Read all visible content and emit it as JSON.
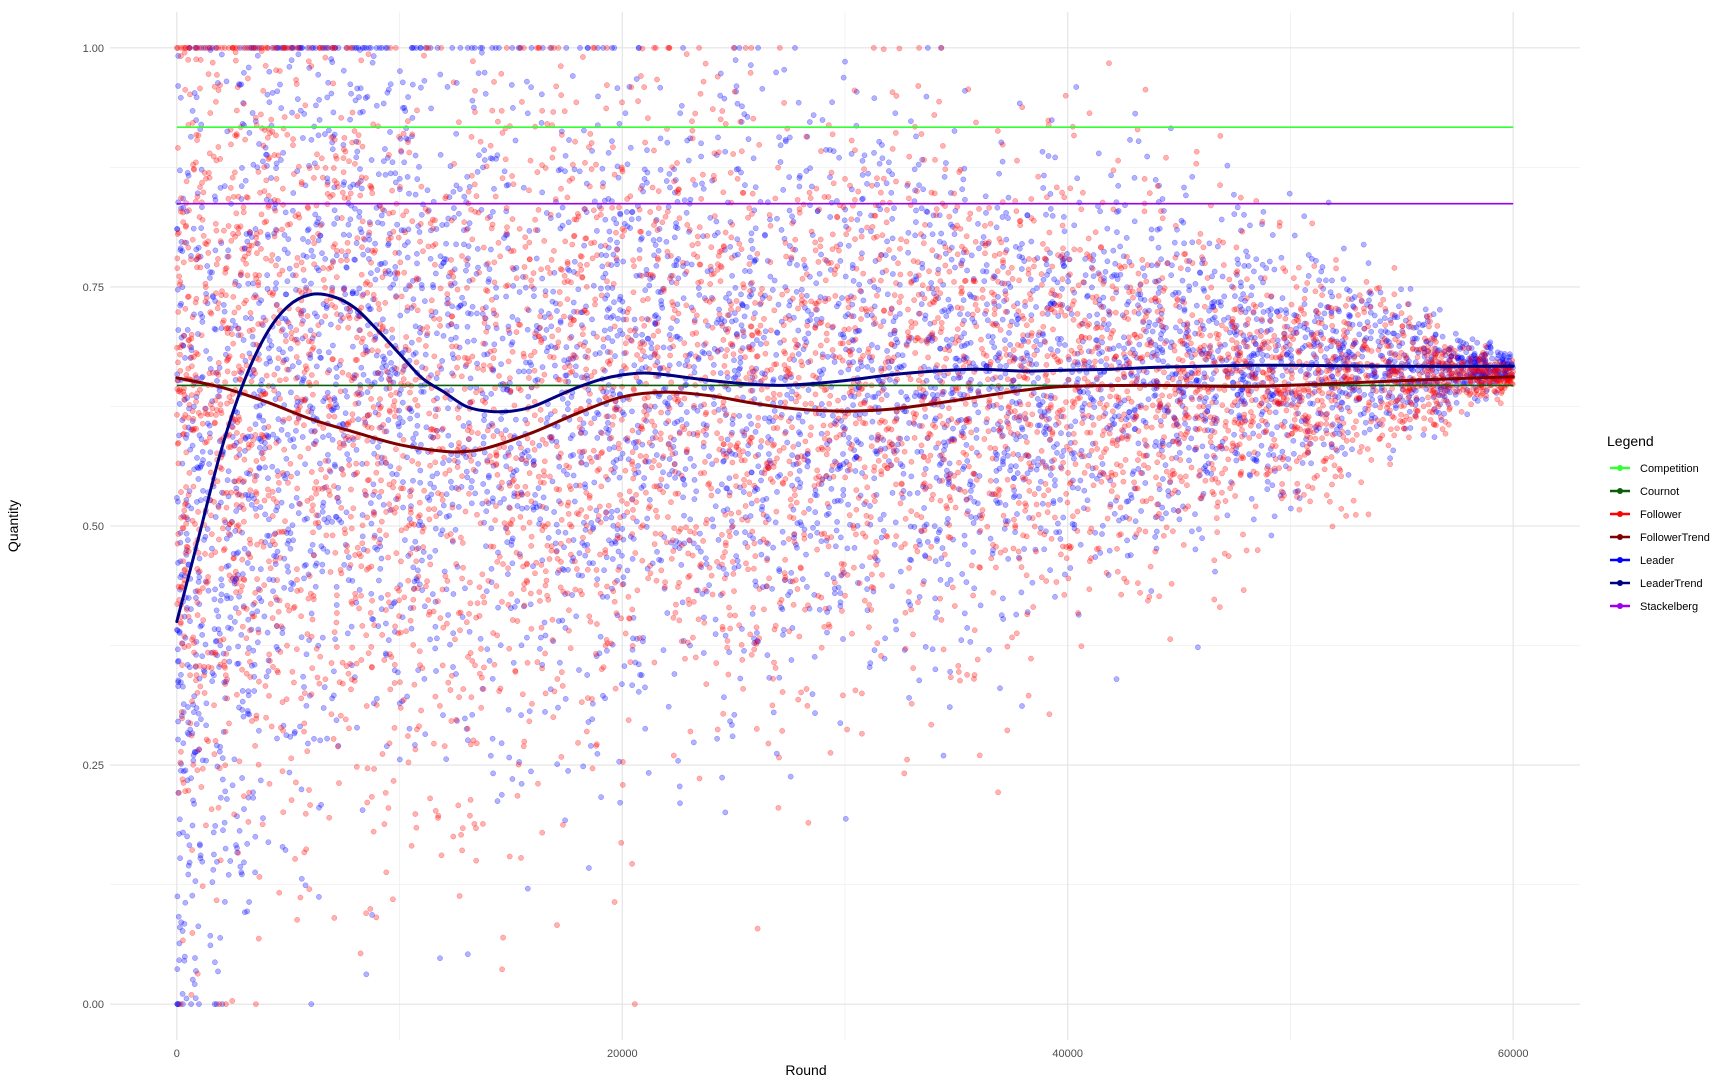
{
  "chart_data": {
    "type": "scatter",
    "title": "",
    "xlabel": "Round",
    "ylabel": "Quantity",
    "xlim": [
      -3000,
      63000
    ],
    "ylim": [
      -0.0375,
      1.0375
    ],
    "x_ticks": [
      0,
      20000,
      40000,
      60000
    ],
    "x_tick_labels": [
      "0",
      "20000",
      "40000",
      "60000"
    ],
    "y_ticks": [
      0,
      0.25,
      0.5,
      0.75,
      1
    ],
    "y_tick_labels": [
      "0.00",
      "0.25",
      "0.50",
      "0.75",
      "1.00"
    ],
    "grid": true,
    "legend": {
      "title": "Legend",
      "position": "right",
      "entries": [
        {
          "label": "Competition",
          "color": "#33ff33"
        },
        {
          "label": "Cournot",
          "color": "#0b5e0b"
        },
        {
          "label": "Follower",
          "color": "#ff0000"
        },
        {
          "label": "FollowerTrend",
          "color": "#7f0000"
        },
        {
          "label": "Leader",
          "color": "#0000ff"
        },
        {
          "label": "LeaderTrend",
          "color": "#000080"
        },
        {
          "label": "Stackelberg",
          "color": "#9900ee"
        }
      ]
    },
    "reference_lines": [
      {
        "name": "Competition",
        "y": 0.917,
        "x_range": [
          0,
          60000
        ],
        "color": "#33ff33"
      },
      {
        "name": "Stackelberg",
        "y": 0.837,
        "x_range": [
          0,
          60000
        ],
        "color": "#9900ee"
      },
      {
        "name": "Cournot",
        "y": 0.647,
        "x_range": [
          0,
          60000
        ],
        "color": "#0b5e0b"
      }
    ],
    "series": [
      {
        "name": "Leader",
        "kind": "points",
        "color": "#0000ff",
        "opacity": 0.3,
        "distribution": {
          "x_range": [
            0,
            60000
          ],
          "center": [
            [
              0,
              0.42
            ],
            [
              4000,
              0.63
            ],
            [
              8000,
              0.72
            ],
            [
              12000,
              0.64
            ],
            [
              16000,
              0.62
            ],
            [
              20000,
              0.65
            ],
            [
              30000,
              0.65
            ],
            [
              40000,
              0.655
            ],
            [
              50000,
              0.665
            ],
            [
              60000,
              0.667
            ]
          ],
          "spread": [
            [
              0,
              0.5
            ],
            [
              10000,
              0.4
            ],
            [
              20000,
              0.35
            ],
            [
              30000,
              0.29
            ],
            [
              40000,
              0.22
            ],
            [
              50000,
              0.13
            ],
            [
              60000,
              0.01
            ]
          ]
        }
      },
      {
        "name": "Follower",
        "kind": "points",
        "color": "#ff0000",
        "opacity": 0.3,
        "distribution": {
          "x_range": [
            0,
            60000
          ],
          "center": [
            [
              0,
              0.62
            ],
            [
              5000,
              0.64
            ],
            [
              10000,
              0.6
            ],
            [
              14000,
              0.58
            ],
            [
              20000,
              0.64
            ],
            [
              30000,
              0.62
            ],
            [
              40000,
              0.645
            ],
            [
              50000,
              0.65
            ],
            [
              60000,
              0.657
            ]
          ],
          "spread": [
            [
              0,
              0.5
            ],
            [
              10000,
              0.42
            ],
            [
              20000,
              0.36
            ],
            [
              30000,
              0.3
            ],
            [
              40000,
              0.23
            ],
            [
              50000,
              0.14
            ],
            [
              60000,
              0.01
            ]
          ]
        }
      },
      {
        "name": "LeaderTrend",
        "kind": "smooth",
        "color": "#000080",
        "points": [
          [
            0,
            0.4
          ],
          [
            1000,
            0.49
          ],
          [
            2000,
            0.58
          ],
          [
            3000,
            0.65
          ],
          [
            4000,
            0.7
          ],
          [
            5000,
            0.73
          ],
          [
            6000,
            0.742
          ],
          [
            7000,
            0.74
          ],
          [
            8000,
            0.728
          ],
          [
            9000,
            0.705
          ],
          [
            10000,
            0.68
          ],
          [
            11000,
            0.655
          ],
          [
            12000,
            0.64
          ],
          [
            13000,
            0.625
          ],
          [
            14000,
            0.62
          ],
          [
            15000,
            0.62
          ],
          [
            16000,
            0.625
          ],
          [
            17000,
            0.635
          ],
          [
            18000,
            0.645
          ],
          [
            19000,
            0.653
          ],
          [
            20000,
            0.658
          ],
          [
            21000,
            0.66
          ],
          [
            22000,
            0.658
          ],
          [
            24000,
            0.652
          ],
          [
            26000,
            0.648
          ],
          [
            27000,
            0.647
          ],
          [
            28000,
            0.648
          ],
          [
            30000,
            0.652
          ],
          [
            32000,
            0.658
          ],
          [
            34000,
            0.662
          ],
          [
            36000,
            0.664
          ],
          [
            38000,
            0.662
          ],
          [
            40000,
            0.663
          ],
          [
            42000,
            0.664
          ],
          [
            44000,
            0.666
          ],
          [
            46000,
            0.667
          ],
          [
            48000,
            0.668
          ],
          [
            50000,
            0.668
          ],
          [
            55000,
            0.667
          ],
          [
            60000,
            0.667
          ]
        ]
      },
      {
        "name": "FollowerTrend",
        "kind": "smooth",
        "color": "#7f0000",
        "points": [
          [
            0,
            0.655
          ],
          [
            2000,
            0.645
          ],
          [
            4000,
            0.63
          ],
          [
            6000,
            0.612
          ],
          [
            8000,
            0.598
          ],
          [
            10000,
            0.585
          ],
          [
            12000,
            0.578
          ],
          [
            13000,
            0.578
          ],
          [
            14000,
            0.582
          ],
          [
            16000,
            0.598
          ],
          [
            18000,
            0.618
          ],
          [
            20000,
            0.635
          ],
          [
            22000,
            0.64
          ],
          [
            24000,
            0.636
          ],
          [
            26000,
            0.628
          ],
          [
            28000,
            0.622
          ],
          [
            30000,
            0.62
          ],
          [
            32000,
            0.622
          ],
          [
            34000,
            0.628
          ],
          [
            36000,
            0.635
          ],
          [
            38000,
            0.642
          ],
          [
            40000,
            0.646
          ],
          [
            44000,
            0.647
          ],
          [
            48000,
            0.646
          ],
          [
            52000,
            0.649
          ],
          [
            56000,
            0.653
          ],
          [
            60000,
            0.656
          ]
        ]
      }
    ]
  }
}
